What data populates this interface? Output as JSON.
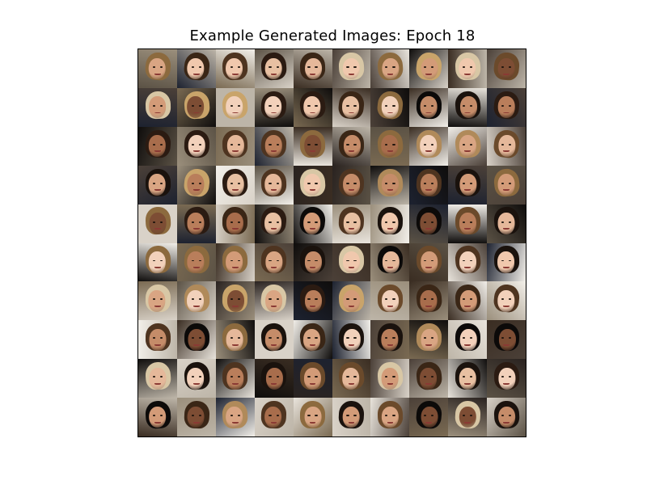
{
  "title": "Example Generated Images: Epoch 18",
  "image_grid": {
    "rows": 10,
    "cols": 10,
    "content": "generated-face-samples"
  }
}
